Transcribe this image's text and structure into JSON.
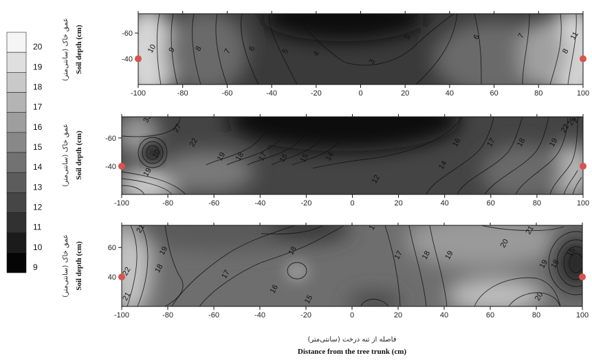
{
  "figure": {
    "caption_fa": "فاصله از تنه درخت (سانتی‌متر)",
    "caption_en": "Distance from the tree trunk (cm)"
  },
  "legend": {
    "levels": [
      20,
      19,
      18,
      17,
      16,
      15,
      14,
      13,
      12,
      11,
      10,
      9
    ]
  },
  "chart_data": [
    {
      "type": "heatmap",
      "ylabel_fa": "عمق خاک (سانتی‌متر)",
      "ylabel_en": "Soil depth (cm)",
      "x_ticks": [
        -100,
        -80,
        -60,
        -40,
        -20,
        0,
        20,
        40,
        60,
        80,
        100
      ],
      "y_ticks": [
        -40,
        -60
      ],
      "xlim": [
        -100,
        100
      ],
      "ylim": [
        -75,
        -20
      ],
      "contour_labels": [
        {
          "value": "10",
          "x": -93,
          "y": -47
        },
        {
          "value": "9",
          "x": -84,
          "y": -46
        },
        {
          "value": "8",
          "x": -72,
          "y": -47
        },
        {
          "value": "7",
          "x": -59,
          "y": -45
        },
        {
          "value": "6",
          "x": -48,
          "y": -47
        },
        {
          "value": "5",
          "x": -33,
          "y": -45
        },
        {
          "value": "4",
          "x": -19,
          "y": -43
        },
        {
          "value": "3",
          "x": 6,
          "y": -37
        },
        {
          "value": "5",
          "x": 22,
          "y": -56
        },
        {
          "value": "6",
          "x": 53,
          "y": -56
        },
        {
          "value": "7",
          "x": 73,
          "y": -57
        },
        {
          "value": "8",
          "x": 93,
          "y": -45
        },
        {
          "value": "11",
          "x": 97,
          "y": -57
        }
      ],
      "markers": [
        {
          "x": -100,
          "y": -40
        },
        {
          "x": 100,
          "y": -40
        }
      ]
    },
    {
      "type": "heatmap",
      "ylabel_fa": "عمق خاک (سانتی‌متر)",
      "ylabel_en": "Soil depth (cm)",
      "x_ticks": [
        -100,
        -80,
        -60,
        -40,
        -20,
        0,
        20,
        40,
        60,
        80,
        100
      ],
      "y_ticks": [
        -40,
        -60
      ],
      "xlim": [
        -100,
        100
      ],
      "ylim": [
        -75,
        -20
      ],
      "contour_labels": [
        {
          "value": "19",
          "x": -88,
          "y": -35
        },
        {
          "value": "10",
          "x": -84,
          "y": -48
        },
        {
          "value": "22",
          "x": -68,
          "y": -56
        },
        {
          "value": "27",
          "x": -75,
          "y": -66
        },
        {
          "value": "33",
          "x": -88,
          "y": -73
        },
        {
          "value": "19",
          "x": -56,
          "y": -46
        },
        {
          "value": "18",
          "x": -48,
          "y": -46
        },
        {
          "value": "17",
          "x": -38,
          "y": -46
        },
        {
          "value": "16",
          "x": -29,
          "y": -45
        },
        {
          "value": "15",
          "x": -20,
          "y": -45
        },
        {
          "value": "14",
          "x": -9,
          "y": -46
        },
        {
          "value": "12",
          "x": 11,
          "y": -30
        },
        {
          "value": "14",
          "x": 40,
          "y": -40
        },
        {
          "value": "16",
          "x": 46,
          "y": -56
        },
        {
          "value": "17",
          "x": 61,
          "y": -56
        },
        {
          "value": "18",
          "x": 74,
          "y": -56
        },
        {
          "value": "19",
          "x": 88,
          "y": -56
        },
        {
          "value": "22",
          "x": 93,
          "y": -66
        },
        {
          "value": "25",
          "x": 96,
          "y": -71
        },
        {
          "value": "27",
          "x": 98,
          "y": -73
        }
      ],
      "markers": [
        {
          "x": -100,
          "y": -40
        },
        {
          "x": 100,
          "y": -40
        }
      ]
    },
    {
      "type": "heatmap",
      "ylabel_fa": "عمق خاک (سانتی‌متر)",
      "ylabel_en": "Soil depth (cm)",
      "x_ticks": [
        -100,
        -80,
        -60,
        -40,
        -20,
        0,
        20,
        40,
        60,
        80,
        100
      ],
      "y_ticks": [
        -40,
        -60
      ],
      "y_tick_labels": [
        "40",
        "60"
      ],
      "xlim": [
        -100,
        100
      ],
      "ylim": [
        -75,
        -20
      ],
      "contour_labels": [
        {
          "value": "21",
          "x": -97,
          "y": -26
        },
        {
          "value": "22",
          "x": -97,
          "y": -43
        },
        {
          "value": "18",
          "x": -83,
          "y": -45
        },
        {
          "value": "19",
          "x": -81,
          "y": -57
        },
        {
          "value": "21",
          "x": -91,
          "y": -72
        },
        {
          "value": "17",
          "x": -54,
          "y": -41
        },
        {
          "value": "16",
          "x": -33,
          "y": -31
        },
        {
          "value": "15",
          "x": -18,
          "y": -24
        },
        {
          "value": "18",
          "x": -25,
          "y": -57
        },
        {
          "value": "16",
          "x": 10,
          "y": -74
        },
        {
          "value": "17",
          "x": 21,
          "y": -54
        },
        {
          "value": "18",
          "x": 33,
          "y": -54
        },
        {
          "value": "19",
          "x": 43,
          "y": -54
        },
        {
          "value": "20",
          "x": 82,
          "y": -26
        },
        {
          "value": "20",
          "x": 67,
          "y": -62
        },
        {
          "value": "21",
          "x": 78,
          "y": -71
        },
        {
          "value": "19",
          "x": 84,
          "y": -48
        },
        {
          "value": "18",
          "x": 89,
          "y": -48
        },
        {
          "value": "15",
          "x": 96,
          "y": -56
        }
      ],
      "markers": [
        {
          "x": -100,
          "y": -40
        },
        {
          "x": 100,
          "y": -40
        }
      ]
    }
  ]
}
